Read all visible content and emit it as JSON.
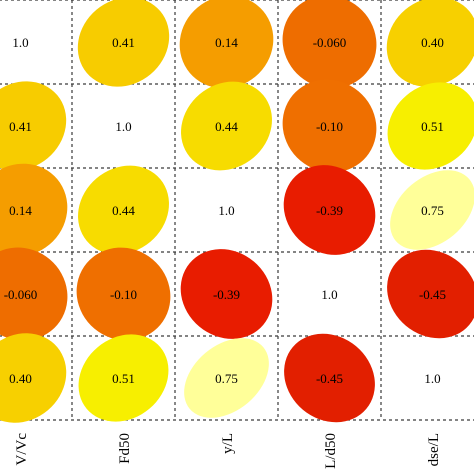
{
  "chart_data": {
    "type": "heatmap",
    "subtype": "correlation-ellipse-matrix",
    "title": "",
    "variables": [
      "V/Vc",
      "Fd50",
      "y/L",
      "L/d50",
      "dse/L"
    ],
    "matrix": [
      [
        1.0,
        0.41,
        0.14,
        -0.06,
        0.4
      ],
      [
        0.41,
        1.0,
        0.44,
        -0.1,
        0.51
      ],
      [
        0.14,
        0.44,
        1.0,
        -0.39,
        0.75
      ],
      [
        -0.06,
        -0.1,
        -0.39,
        1.0,
        -0.45
      ],
      [
        0.4,
        0.51,
        0.75,
        -0.45,
        1.0
      ]
    ],
    "cell_labels": [
      [
        "1.0",
        "0.41",
        "0.14",
        "-0.060",
        "0.40"
      ],
      [
        "0.41",
        "1.0",
        "0.44",
        "-0.10",
        "0.51"
      ],
      [
        "0.14",
        "0.44",
        "1.0",
        "-0.39",
        "0.75"
      ],
      [
        "-0.060",
        "-0.10",
        "-0.39",
        "1.0",
        "-0.45"
      ],
      [
        "0.40",
        "0.51",
        "0.75",
        "-0.45",
        "1.0"
      ]
    ],
    "cell_colors": [
      [
        null,
        "#f7cc00",
        "#f59d00",
        "#ee6d00",
        "#f7d000"
      ],
      [
        null,
        null,
        "#f7dc00",
        "#ef6f00",
        "#f7ef00"
      ],
      [
        null,
        null,
        null,
        "#e81c00",
        "#ffff99"
      ],
      [
        null,
        null,
        null,
        null,
        "#e21f00"
      ],
      [
        null,
        null,
        null,
        null,
        null
      ]
    ],
    "diagonal_shape": "none",
    "grid": true
  }
}
